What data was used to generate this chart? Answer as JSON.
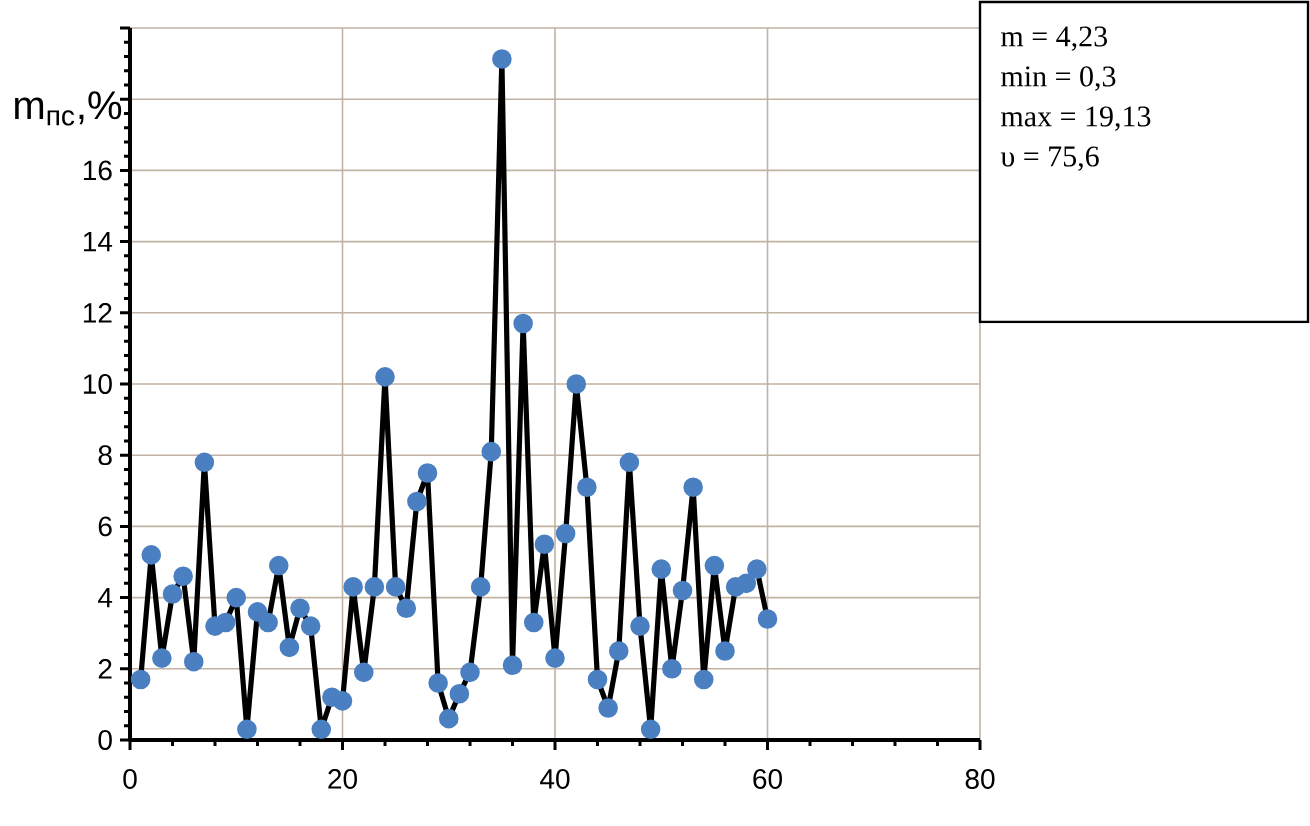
{
  "chart_data": {
    "type": "line",
    "ylabel": "m$_{пс}$,%",
    "x": [
      1,
      2,
      3,
      4,
      5,
      6,
      7,
      8,
      9,
      10,
      11,
      12,
      13,
      14,
      15,
      16,
      17,
      18,
      19,
      20,
      21,
      22,
      23,
      24,
      25,
      26,
      27,
      28,
      29,
      30,
      31,
      32,
      33,
      34,
      35,
      36,
      37,
      38,
      39,
      40,
      41,
      42,
      43,
      44,
      45,
      46,
      47,
      48,
      49,
      50,
      51,
      52,
      53,
      54,
      55,
      56,
      57,
      58,
      59,
      60
    ],
    "series": [
      {
        "color": "#4a7fc1",
        "values": [
          1.7,
          5.2,
          2.3,
          4.1,
          4.6,
          2.2,
          7.8,
          3.2,
          3.3,
          4.0,
          0.3,
          3.6,
          3.3,
          4.9,
          2.6,
          3.7,
          3.2,
          0.3,
          1.2,
          1.1,
          4.3,
          1.9,
          4.3,
          10.2,
          4.3,
          3.7,
          6.7,
          7.5,
          1.6,
          0.6,
          1.3,
          1.9,
          4.3,
          8.1,
          19.13,
          2.1,
          11.7,
          3.3,
          5.5,
          2.3,
          5.8,
          10.0,
          7.1,
          1.7,
          0.9,
          2.5,
          7.8,
          3.2,
          0.3,
          4.8,
          2.0,
          4.2,
          7.1,
          1.7,
          4.9,
          2.5,
          4.3,
          4.4,
          4.8,
          3.4
        ]
      }
    ],
    "xlim": [
      0,
      80
    ],
    "ylim": [
      0,
      20
    ],
    "xticks": [
      0,
      20,
      40,
      60,
      80
    ],
    "yticks": [
      0,
      2,
      4,
      6,
      8,
      10,
      12,
      14,
      16,
      {
        "value": 18,
        "label": null
      },
      {
        "value": 20,
        "label": null
      }
    ],
    "annotations": [
      "m = 4,23",
      "min = 0,3",
      "max = 19,13",
      "υ = 75,6"
    ],
    "grid": true,
    "marker": "circle",
    "line_style": "solid"
  }
}
